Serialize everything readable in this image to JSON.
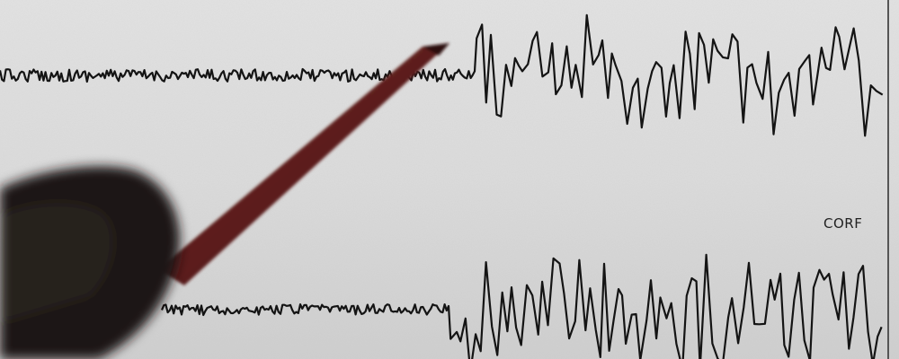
{
  "scene": {
    "description_free": true,
    "station_label": "CORF",
    "colors": {
      "paper": "#dedede",
      "trace": "#141414",
      "pencil_body": "#5a1e1a",
      "hand": "#1e1815"
    },
    "icons": [
      "seismogram-trace",
      "pencil-icon",
      "hand-silhouette"
    ]
  }
}
